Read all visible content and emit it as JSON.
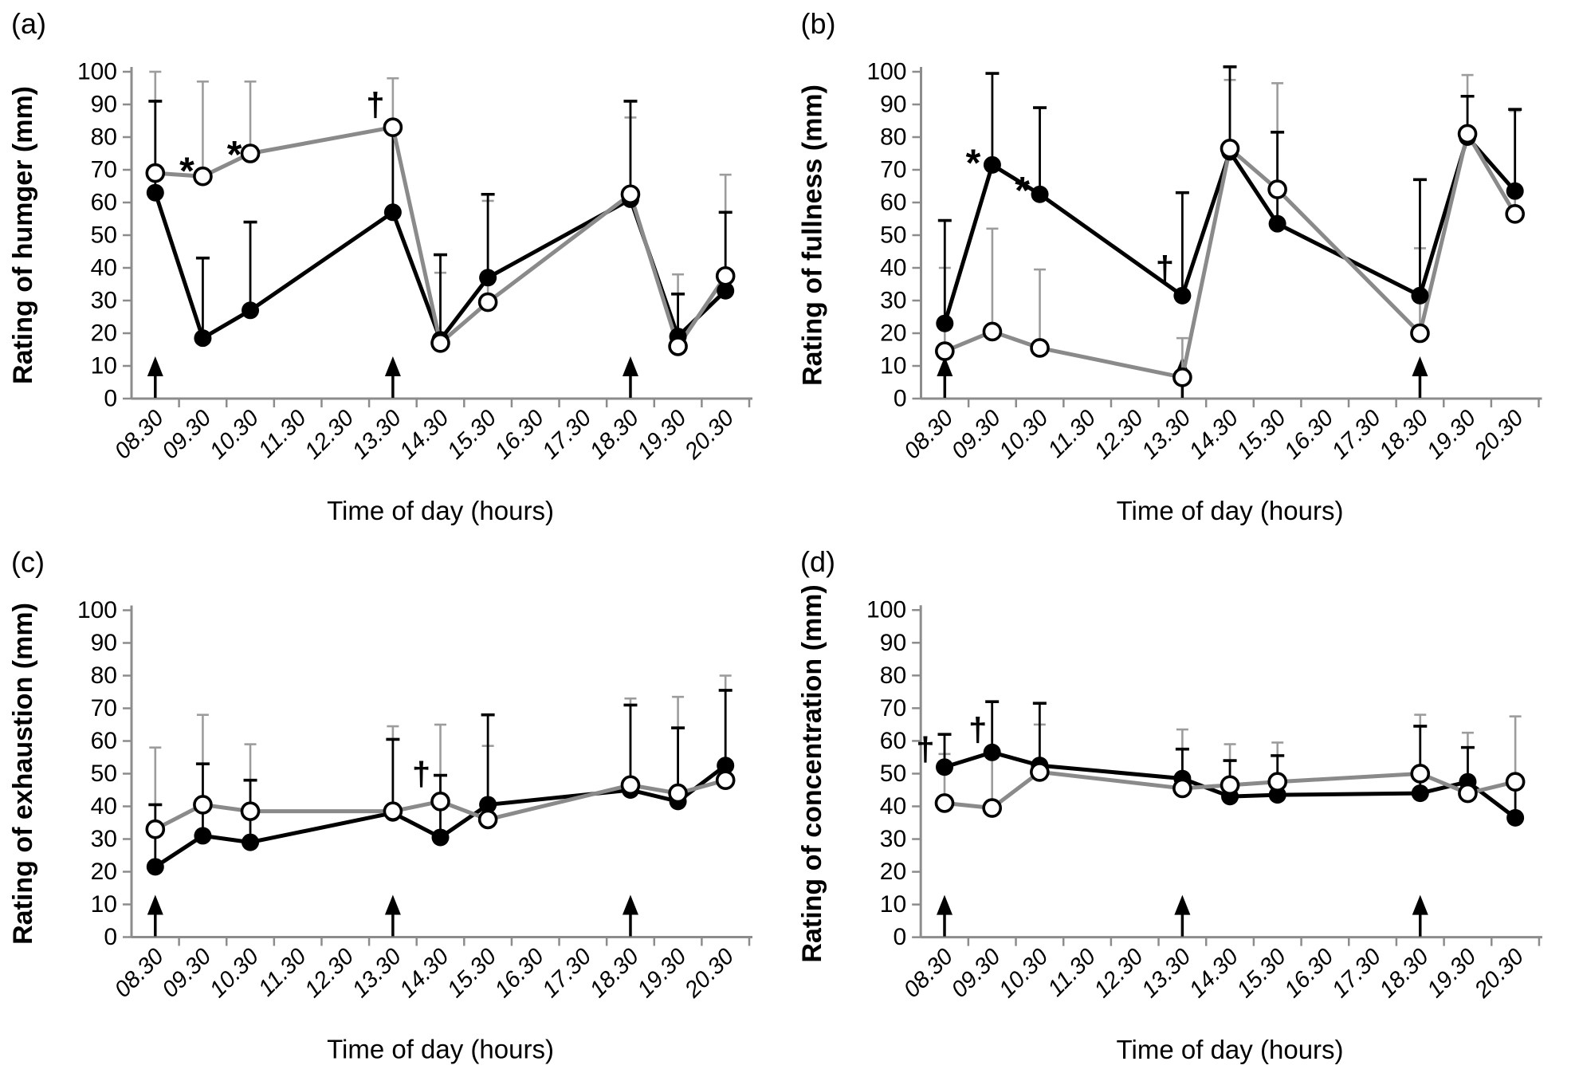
{
  "figure": {
    "background": "#ffffff",
    "xlabel": "Time of day (hours)"
  },
  "style": {
    "black": "#000000",
    "gray_line": "#8a8a8a",
    "gray_error": "#9c9c9c",
    "axis_color": "#8c8c8c",
    "text_color": "#000000"
  },
  "chart_data": [
    {
      "panel_label": "(a)",
      "type": "line",
      "ylabel": "Rating of humger (mm)",
      "xlabel": "Time of day (hours)",
      "ylim": [
        0,
        100
      ],
      "ytick_step": 10,
      "grid": false,
      "legend": "none",
      "categories": [
        "08.30",
        "09.30",
        "10.30",
        "11.30",
        "12.30",
        "13.30",
        "14.30",
        "15.30",
        "16.30",
        "17.30",
        "18.30",
        "19.30",
        "20.30"
      ],
      "meal_arrow_categories": [
        "08.30",
        "13.30",
        "18.30"
      ],
      "series": [
        {
          "name": "filled-black-circles",
          "marker": "filled",
          "points": [
            {
              "x": "08.30",
              "y": 63,
              "err_up": 28
            },
            {
              "x": "09.30",
              "y": 18.5,
              "err_up": 24.5
            },
            {
              "x": "10.30",
              "y": 27,
              "err_up": 27
            },
            {
              "x": "13.30",
              "y": 57,
              "err_up": 25
            },
            {
              "x": "14.30",
              "y": 18,
              "err_up": 26
            },
            {
              "x": "15.30",
              "y": 37,
              "err_up": 25.5
            },
            {
              "x": "18.30",
              "y": 61,
              "err_up": 30
            },
            {
              "x": "19.30",
              "y": 19,
              "err_up": 13
            },
            {
              "x": "20.30",
              "y": 33,
              "err_up": 24
            }
          ]
        },
        {
          "name": "open-white-circles",
          "marker": "open",
          "points": [
            {
              "x": "08.30",
              "y": 69,
              "err_up": 31
            },
            {
              "x": "09.30",
              "y": 68,
              "err_up": 29
            },
            {
              "x": "10.30",
              "y": 75,
              "err_up": 22
            },
            {
              "x": "13.30",
              "y": 83,
              "err_up": 15
            },
            {
              "x": "14.30",
              "y": 17,
              "err_up": 21.5
            },
            {
              "x": "15.30",
              "y": 29.5,
              "err_up": 31
            },
            {
              "x": "18.30",
              "y": 62.5,
              "err_up": 23.5
            },
            {
              "x": "19.30",
              "y": 16,
              "err_up": 22
            },
            {
              "x": "20.30",
              "y": 37.5,
              "err_up": 31
            }
          ]
        }
      ],
      "annotations": [
        {
          "symbol": "*",
          "x": "09.30",
          "y": 73,
          "dx": -20
        },
        {
          "symbol": "*",
          "x": "10.30",
          "y": 78,
          "dx": -20
        },
        {
          "symbol": "†",
          "x": "13.30",
          "y": 90,
          "dx": -22
        }
      ]
    },
    {
      "panel_label": "(b)",
      "type": "line",
      "ylabel": "Rating of fullness (mm)",
      "xlabel": "Time of day (hours)",
      "ylim": [
        0,
        100
      ],
      "ytick_step": 10,
      "grid": false,
      "legend": "none",
      "categories": [
        "08.30",
        "09.30",
        "10.30",
        "11.30",
        "12.30",
        "13.30",
        "14.30",
        "15.30",
        "16.30",
        "17.30",
        "18.30",
        "19.30",
        "20.30"
      ],
      "meal_arrow_categories": [
        "08.30",
        "13.30",
        "18.30"
      ],
      "series": [
        {
          "name": "filled-black-circles",
          "marker": "filled",
          "points": [
            {
              "x": "08.30",
              "y": 23,
              "err_up": 31.5
            },
            {
              "x": "09.30",
              "y": 71.5,
              "err_up": 28
            },
            {
              "x": "10.30",
              "y": 62.5,
              "err_up": 26.5
            },
            {
              "x": "13.30",
              "y": 31.5,
              "err_up": 31.5
            },
            {
              "x": "14.30",
              "y": 75.5,
              "err_up": 26
            },
            {
              "x": "15.30",
              "y": 53.5,
              "err_up": 28
            },
            {
              "x": "18.30",
              "y": 31.5,
              "err_up": 35.5
            },
            {
              "x": "19.30",
              "y": 80,
              "err_up": 12.5
            },
            {
              "x": "20.30",
              "y": 63.5,
              "err_up": 25
            }
          ]
        },
        {
          "name": "open-white-circles",
          "marker": "open",
          "points": [
            {
              "x": "08.30",
              "y": 14.5,
              "err_up": 25.5
            },
            {
              "x": "09.30",
              "y": 20.5,
              "err_up": 31.5
            },
            {
              "x": "10.30",
              "y": 15.5,
              "err_up": 24
            },
            {
              "x": "13.30",
              "y": 6.5,
              "err_up": 12
            },
            {
              "x": "14.30",
              "y": 76.5,
              "err_up": 21
            },
            {
              "x": "15.30",
              "y": 64,
              "err_up": 32.5
            },
            {
              "x": "18.30",
              "y": 20,
              "err_up": 26
            },
            {
              "x": "19.30",
              "y": 81,
              "err_up": 18
            },
            {
              "x": "20.30",
              "y": 56.5,
              "err_up": 31.5
            }
          ]
        }
      ],
      "annotations": [
        {
          "symbol": "*",
          "x": "09.30",
          "y": 75.5,
          "dx": -24
        },
        {
          "symbol": "*",
          "x": "10.30",
          "y": 67,
          "dx": -22
        },
        {
          "symbol": "†",
          "x": "13.30",
          "y": 40,
          "dx": -22
        }
      ]
    },
    {
      "panel_label": "(c)",
      "type": "line",
      "ylabel": "Rating of exhaustion (mm)",
      "xlabel": "Time of day (hours)",
      "ylim": [
        0,
        100
      ],
      "ytick_step": 10,
      "grid": false,
      "legend": "none",
      "categories": [
        "08.30",
        "09.30",
        "10.30",
        "11.30",
        "12.30",
        "13.30",
        "14.30",
        "15.30",
        "16.30",
        "17.30",
        "18.30",
        "19.30",
        "20.30"
      ],
      "meal_arrow_categories": [
        "08.30",
        "13.30",
        "18.30"
      ],
      "series": [
        {
          "name": "filled-black-circles",
          "marker": "filled",
          "points": [
            {
              "x": "08.30",
              "y": 21.5,
              "err_up": 19
            },
            {
              "x": "09.30",
              "y": 31,
              "err_up": 22
            },
            {
              "x": "10.30",
              "y": 29,
              "err_up": 19
            },
            {
              "x": "13.30",
              "y": 38,
              "err_up": 22.5
            },
            {
              "x": "14.30",
              "y": 30.5,
              "err_up": 19
            },
            {
              "x": "15.30",
              "y": 40.5,
              "err_up": 27.5
            },
            {
              "x": "18.30",
              "y": 45,
              "err_up": 26
            },
            {
              "x": "19.30",
              "y": 41.5,
              "err_up": 22.5
            },
            {
              "x": "20.30",
              "y": 52.5,
              "err_up": 23
            }
          ]
        },
        {
          "name": "open-white-circles",
          "marker": "open",
          "points": [
            {
              "x": "08.30",
              "y": 33,
              "err_up": 25
            },
            {
              "x": "09.30",
              "y": 40.5,
              "err_up": 27.5
            },
            {
              "x": "10.30",
              "y": 38.5,
              "err_up": 20.5
            },
            {
              "x": "13.30",
              "y": 38.5,
              "err_up": 26
            },
            {
              "x": "14.30",
              "y": 41.5,
              "err_up": 23.5
            },
            {
              "x": "15.30",
              "y": 36,
              "err_up": 22.5
            },
            {
              "x": "18.30",
              "y": 46.5,
              "err_up": 26.5
            },
            {
              "x": "19.30",
              "y": 44,
              "err_up": 29.5
            },
            {
              "x": "20.30",
              "y": 48,
              "err_up": 32
            }
          ]
        }
      ],
      "annotations": [
        {
          "symbol": "†",
          "x": "14.30",
          "y": 50,
          "dx": -24
        }
      ]
    },
    {
      "panel_label": "(d)",
      "type": "line",
      "ylabel": "Rating of concentration (mm)",
      "xlabel": "Time of day (hours)",
      "ylim": [
        0,
        100
      ],
      "ytick_step": 10,
      "grid": false,
      "legend": "none",
      "categories": [
        "08.30",
        "09.30",
        "10.30",
        "11.30",
        "12.30",
        "13.30",
        "14.30",
        "15.30",
        "16.30",
        "17.30",
        "18.30",
        "19.30",
        "20.30"
      ],
      "meal_arrow_categories": [
        "08.30",
        "13.30",
        "18.30"
      ],
      "series": [
        {
          "name": "filled-black-circles",
          "marker": "filled",
          "points": [
            {
              "x": "08.30",
              "y": 52,
              "err_up": 10
            },
            {
              "x": "09.30",
              "y": 56.5,
              "err_up": 15.5
            },
            {
              "x": "10.30",
              "y": 52.5,
              "err_up": 19
            },
            {
              "x": "13.30",
              "y": 48.5,
              "err_up": 9
            },
            {
              "x": "14.30",
              "y": 43,
              "err_up": 11
            },
            {
              "x": "15.30",
              "y": 43.5,
              "err_up": 12
            },
            {
              "x": "18.30",
              "y": 44,
              "err_up": 20.5
            },
            {
              "x": "19.30",
              "y": 47.5,
              "err_up": 10.5
            },
            {
              "x": "20.30",
              "y": 36.5,
              "err_up": 9.5
            }
          ]
        },
        {
          "name": "open-white-circles",
          "marker": "open",
          "points": [
            {
              "x": "08.30",
              "y": 41,
              "err_up": 15
            },
            {
              "x": "09.30",
              "y": 39.5,
              "err_up": 16.5
            },
            {
              "x": "10.30",
              "y": 50.5,
              "err_up": 14.5
            },
            {
              "x": "13.30",
              "y": 45.5,
              "err_up": 18
            },
            {
              "x": "14.30",
              "y": 46.5,
              "err_up": 12.5
            },
            {
              "x": "15.30",
              "y": 47.5,
              "err_up": 12
            },
            {
              "x": "18.30",
              "y": 50,
              "err_up": 18
            },
            {
              "x": "19.30",
              "y": 44,
              "err_up": 18.5
            },
            {
              "x": "20.30",
              "y": 47.5,
              "err_up": 20
            }
          ]
        }
      ],
      "annotations": [
        {
          "symbol": "†",
          "x": "08.30",
          "y": 57.5,
          "dx": -24
        },
        {
          "symbol": "†",
          "x": "09.30",
          "y": 63.5,
          "dx": -18
        }
      ]
    }
  ]
}
